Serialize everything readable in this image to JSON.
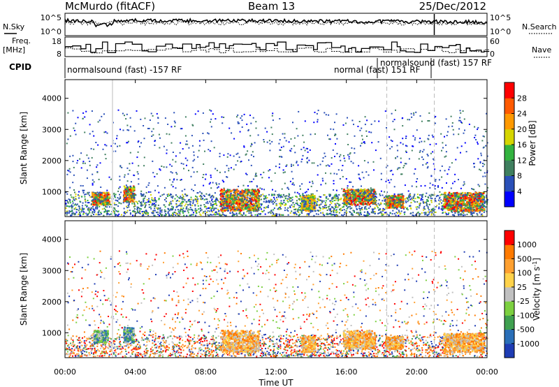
{
  "header": {
    "station": "McMurdo (fitACF)",
    "beam": "Beam 13",
    "date": "25/Dec/2012"
  },
  "noise_panel": {
    "left_label": "N.Sky",
    "right_label": "N.Search",
    "left_ticks": [
      "10^5",
      "10^0"
    ],
    "right_ticks": [
      "10^5",
      "10^0"
    ]
  },
  "freq_panel": {
    "left_label_1": "Freq.",
    "left_label_2": "[MHz]",
    "right_label": "Nave",
    "left_ticks": [
      "18",
      "8"
    ],
    "right_ticks": [
      "60",
      "0"
    ]
  },
  "cpid": {
    "label": "CPID",
    "segments": [
      {
        "text": "normalsound (fast) -157 RF",
        "start_hour": 0.0
      },
      {
        "text": "normal (fast) 151 RF",
        "start_hour": 18.3
      },
      {
        "text": "normalsound (fast) 157 RF",
        "start_hour": 20.9
      }
    ]
  },
  "chart_data": [
    {
      "type": "heatmap",
      "name": "power",
      "xlabel": "",
      "ylabel": "Slant Range [km]",
      "xlim": [
        0,
        24
      ],
      "ylim": [
        200,
        4600
      ],
      "yticks": [
        "4000",
        "3000",
        "2000",
        "1000"
      ],
      "colorbar": {
        "label": "Power [dB]",
        "ticks": [
          "28",
          "24",
          "20",
          "16",
          "12",
          "8",
          "4"
        ],
        "colors": [
          "#0000ff",
          "#2a50b8",
          "#3f7f5f",
          "#33b33f",
          "#d5d500",
          "#ff9900",
          "#ff5a00",
          "#ff0000"
        ]
      },
      "echo_regions": [
        {
          "t": [
            1.5,
            2.5
          ],
          "range": [
            600,
            1000
          ],
          "level": "high"
        },
        {
          "t": [
            3.3,
            3.9
          ],
          "range": [
            700,
            1200
          ],
          "level": "high"
        },
        {
          "t": [
            8.8,
            11.0
          ],
          "range": [
            400,
            1100
          ],
          "level": "high"
        },
        {
          "t": [
            13.4,
            14.2
          ],
          "range": [
            400,
            900
          ],
          "level": "mid"
        },
        {
          "t": [
            15.8,
            17.6
          ],
          "range": [
            600,
            1100
          ],
          "level": "high"
        },
        {
          "t": [
            18.2,
            19.2
          ],
          "range": [
            500,
            900
          ],
          "level": "high"
        },
        {
          "t": [
            21.5,
            23.8
          ],
          "range": [
            400,
            1000
          ],
          "level": "high"
        }
      ]
    },
    {
      "type": "heatmap",
      "name": "velocity",
      "xlabel": "Time UT",
      "ylabel": "Slant Range [km]",
      "xlim": [
        0,
        24
      ],
      "ylim": [
        200,
        4600
      ],
      "xticks": [
        "00:00",
        "04:00",
        "08:00",
        "12:00",
        "16:00",
        "20:00",
        "00:00"
      ],
      "yticks": [
        "4000",
        "3000",
        "2000",
        "1000"
      ],
      "colorbar": {
        "label": "Velocity [m s^-1]",
        "ticks": [
          "1000",
          "500",
          "100",
          "25",
          "-25",
          "-100",
          "-500",
          "-1000"
        ],
        "colors": [
          "#1e3cb4",
          "#2a6fb8",
          "#3fa050",
          "#7cd040",
          "#c0c0c0",
          "#ffd24a",
          "#ffa030",
          "#ff7a00",
          "#ff0000"
        ]
      },
      "echo_regions": [
        {
          "t": [
            1.6,
            2.4
          ],
          "range": [
            700,
            1100
          ],
          "level": "green"
        },
        {
          "t": [
            3.3,
            3.9
          ],
          "range": [
            700,
            1200
          ],
          "level": "green"
        },
        {
          "t": [
            8.8,
            11.0
          ],
          "range": [
            400,
            1100
          ],
          "level": "orange"
        },
        {
          "t": [
            13.4,
            14.2
          ],
          "range": [
            400,
            900
          ],
          "level": "orange"
        },
        {
          "t": [
            15.8,
            17.6
          ],
          "range": [
            500,
            1100
          ],
          "level": "orange"
        },
        {
          "t": [
            18.2,
            19.2
          ],
          "range": [
            500,
            900
          ],
          "level": "orange"
        },
        {
          "t": [
            21.5,
            23.8
          ],
          "range": [
            400,
            1000
          ],
          "level": "orange"
        }
      ]
    }
  ]
}
